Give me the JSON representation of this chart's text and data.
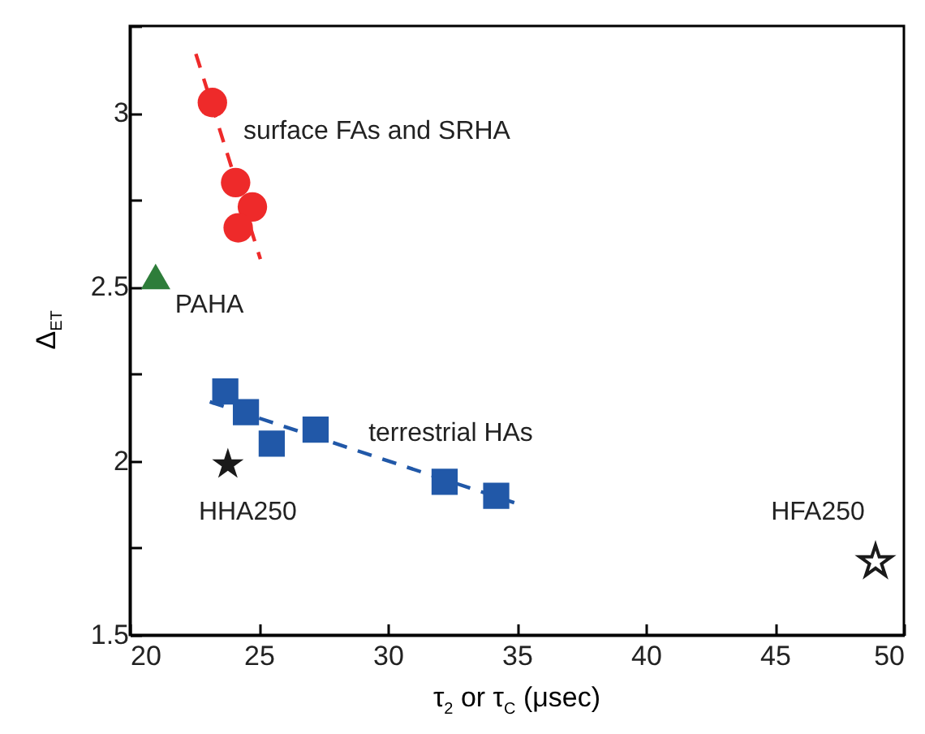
{
  "chart_data": {
    "type": "scatter",
    "xlabel": "τ$_{2}$ or τ$_{C}$ (μsec)",
    "ylabel": "Δ$_{ET}$",
    "xlim": [
      20,
      50
    ],
    "xticks": [
      20,
      25,
      30,
      35,
      40,
      45,
      50
    ],
    "ylim": [
      1.5,
      3.25
    ],
    "yticks": [
      1.5,
      {
        "value": 1.75,
        "label": null
      },
      2,
      {
        "value": 2.25,
        "label": null
      },
      2.5,
      {
        "value": 2.75,
        "label": null
      },
      3,
      {
        "value": 3.25,
        "label": null
      }
    ],
    "grid": false,
    "series": [
      {
        "type": "line",
        "color": "#ee2a2a",
        "x": [
          22.56,
          25.06
        ],
        "values": [
          3.17,
          2.58
        ],
        "line_style": "dashed",
        "marker": "none"
      },
      {
        "type": "line",
        "color": "#2158a8",
        "x": [
          23.1,
          34.9
        ],
        "values": [
          2.17,
          1.88
        ],
        "line_style": "dashed",
        "marker": "none"
      },
      {
        "color": "#ee2a2a",
        "x": [
          23.2,
          24.1,
          24.75,
          24.2
        ],
        "values": [
          3.03,
          2.8,
          2.73,
          2.67
        ],
        "marker": "circle"
      },
      {
        "color": "#2e7d3a",
        "x": [
          21.0
        ],
        "values": [
          2.53
        ],
        "marker": "triangle"
      },
      {
        "color": "#2158a8",
        "x": [
          23.7,
          24.5,
          25.5,
          27.2,
          32.2,
          34.2
        ],
        "values": [
          2.2,
          2.14,
          2.05,
          2.09,
          1.94,
          1.9
        ],
        "marker": "square"
      },
      {
        "color": "#1a1a1a",
        "x": [
          23.8
        ],
        "values": [
          1.99
        ],
        "marker": "star"
      },
      {
        "color": "#ffffff",
        "x": [
          48.9
        ],
        "values": [
          1.71
        ],
        "marker": "star"
      }
    ],
    "annotations": [
      "surface FAs and SRHA",
      "PAHA",
      "terrestrial HAs",
      "HHA250",
      "HFA250"
    ]
  }
}
